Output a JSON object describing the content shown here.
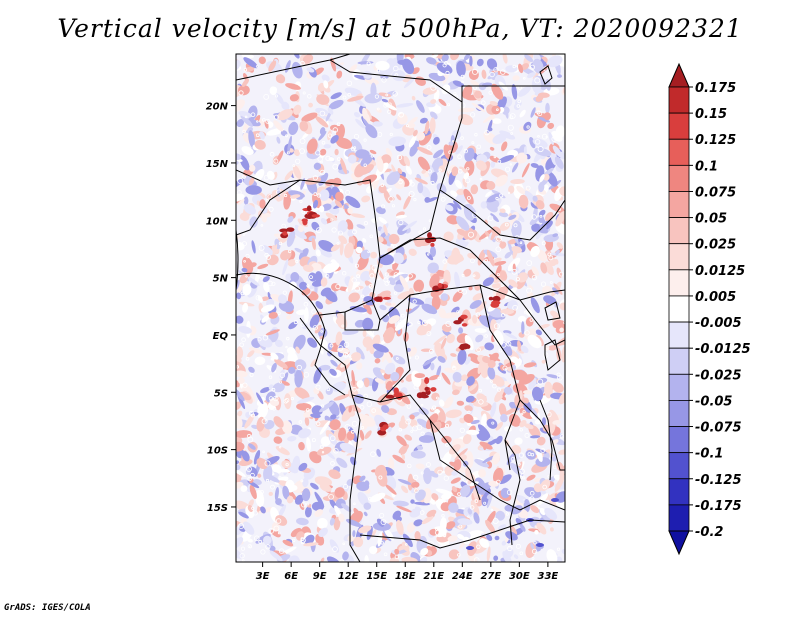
{
  "title": "Vertical velocity [m/s] at 500hPa, VT: 2020092321",
  "credit": "GrADS: IGES/COLA",
  "axes": {
    "lon_ticks": [
      {
        "value": 3,
        "label": "3E"
      },
      {
        "value": 6,
        "label": "6E"
      },
      {
        "value": 9,
        "label": "9E"
      },
      {
        "value": 12,
        "label": "12E"
      },
      {
        "value": 15,
        "label": "15E"
      },
      {
        "value": 18,
        "label": "18E"
      },
      {
        "value": 21,
        "label": "21E"
      },
      {
        "value": 24,
        "label": "24E"
      },
      {
        "value": 27,
        "label": "27E"
      },
      {
        "value": 30,
        "label": "30E"
      },
      {
        "value": 33,
        "label": "33E"
      }
    ],
    "lat_ticks": [
      {
        "value": 20,
        "label": "20N"
      },
      {
        "value": 15,
        "label": "15N"
      },
      {
        "value": 10,
        "label": "10N"
      },
      {
        "value": 5,
        "label": "5N"
      },
      {
        "value": 0,
        "label": "EQ"
      },
      {
        "value": -5,
        "label": "5S"
      },
      {
        "value": -10,
        "label": "10S"
      },
      {
        "value": -15,
        "label": "15S"
      }
    ],
    "lon_range": [
      0.2,
      34.8
    ],
    "lat_range": [
      -19.8,
      24.5
    ]
  },
  "colorbar": {
    "levels": [
      "0.175",
      "0.15",
      "0.125",
      "0.1",
      "0.075",
      "0.05",
      "0.025",
      "0.0125",
      "0.005",
      "-0.005",
      "-0.0125",
      "-0.025",
      "-0.05",
      "-0.075",
      "-0.1",
      "-0.125",
      "-0.175",
      "-0.2"
    ],
    "colors": [
      "#a51e22",
      "#c12a2b",
      "#d93e3d",
      "#e75f5a",
      "#ef8680",
      "#f4a6a1",
      "#f8c4bf",
      "#fbdcd8",
      "#fdefed",
      "#ffffff",
      "#e6e6fb",
      "#cfcff5",
      "#b3b3ee",
      "#9797e6",
      "#7575dc",
      "#5252cf",
      "#3232c0",
      "#1e1eb0",
      "#1010a0"
    ]
  }
}
